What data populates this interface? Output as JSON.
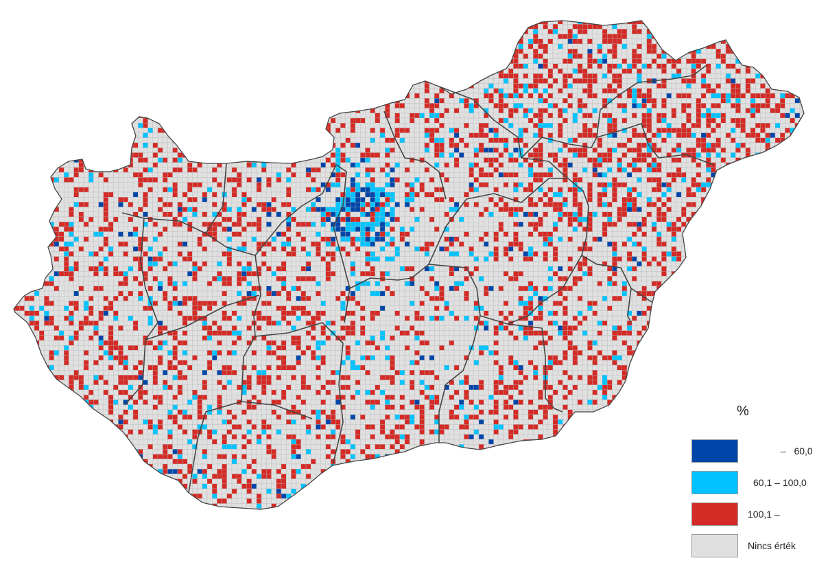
{
  "legend": {
    "title": "%",
    "items": [
      {
        "label": "–   60,0",
        "color": "#0046a8"
      },
      {
        "label": "60,1 – 100,0",
        "color": "#00c3ff"
      },
      {
        "label": "100,1 –",
        "color": "#d42b26"
      },
      {
        "label": "Nincs érték",
        "color": "#e0e0e0"
      }
    ]
  },
  "map": {
    "grid_color": "#b8b8b8",
    "border_color": "#444444"
  }
}
